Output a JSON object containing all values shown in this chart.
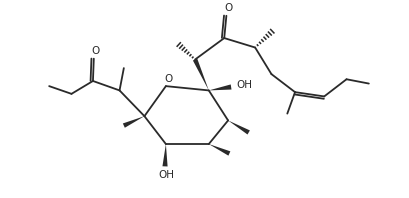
{
  "bg_color": "#ffffff",
  "line_color": "#2a2a2a",
  "lw": 1.3,
  "figsize": [
    4.09,
    1.98
  ],
  "dpi": 100,
  "xlim": [
    0.0,
    9.5
  ],
  "ylim": [
    0.5,
    5.0
  ]
}
